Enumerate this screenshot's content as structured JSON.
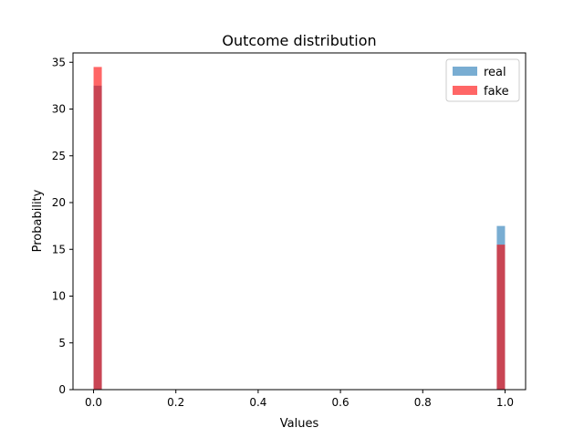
{
  "chart_data": {
    "type": "bar",
    "title": "Outcome distribution",
    "xlabel": "Values",
    "ylabel": "Probability",
    "xlim": [
      -0.05,
      1.05
    ],
    "ylim": [
      0,
      36
    ],
    "xticks": [
      0.0,
      0.2,
      0.4,
      0.6,
      0.8,
      1.0
    ],
    "xtick_labels": [
      "0.0",
      "0.2",
      "0.4",
      "0.6",
      "0.8",
      "1.0"
    ],
    "yticks": [
      0,
      5,
      10,
      15,
      20,
      25,
      30,
      35
    ],
    "ytick_labels": [
      "0",
      "5",
      "10",
      "15",
      "20",
      "25",
      "30",
      "35"
    ],
    "bin_width": 0.02,
    "grid": false,
    "legend_position": "top-right",
    "series": [
      {
        "name": "real",
        "color": "#1f77b4",
        "opacity": 0.6,
        "bins": [
          {
            "x0": 0.0,
            "x1": 0.02,
            "value": 32.5
          },
          {
            "x0": 0.98,
            "x1": 1.0,
            "value": 17.5
          }
        ]
      },
      {
        "name": "fake",
        "color": "#ff0000",
        "opacity": 0.6,
        "bins": [
          {
            "x0": 0.0,
            "x1": 0.02,
            "value": 34.5
          },
          {
            "x0": 0.98,
            "x1": 1.0,
            "value": 15.5
          }
        ]
      }
    ]
  }
}
